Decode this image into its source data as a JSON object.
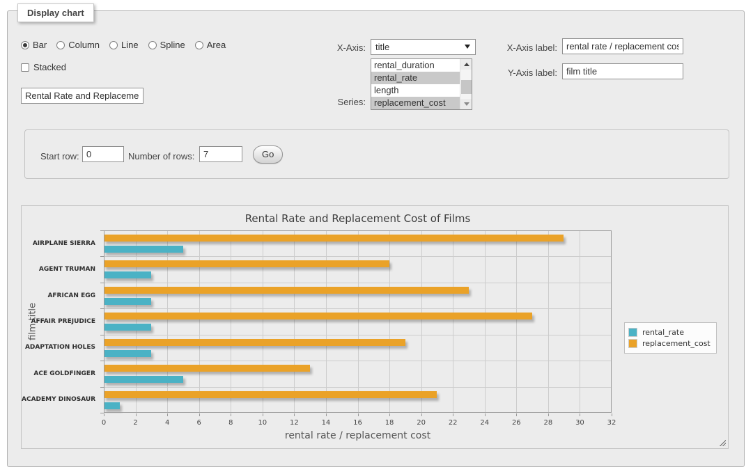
{
  "panel": {
    "legend": "Display chart"
  },
  "controls": {
    "chart_types": [
      {
        "label": "Bar",
        "selected": true
      },
      {
        "label": "Column",
        "selected": false
      },
      {
        "label": "Line",
        "selected": false
      },
      {
        "label": "Spline",
        "selected": false
      },
      {
        "label": "Area",
        "selected": false
      }
    ],
    "stacked": {
      "label": "Stacked",
      "checked": false
    },
    "chart_title_input": {
      "value": "Rental Rate and Replacement Cost of Films"
    },
    "x_axis": {
      "label": "X-Axis:",
      "selected_option": "title"
    },
    "series": {
      "label": "Series:",
      "options": [
        {
          "label": "rental_duration",
          "selected": false
        },
        {
          "label": "rental_rate",
          "selected": true
        },
        {
          "label": "length",
          "selected": false
        },
        {
          "label": "replacement_cost",
          "selected": true
        }
      ]
    },
    "x_axis_label": {
      "label": "X-Axis label:",
      "value": "rental rate / replacement cost"
    },
    "y_axis_label": {
      "label": "Y-Axis label:",
      "value": "film title"
    }
  },
  "row_selector": {
    "start_row_label": "Start row:",
    "start_row_value": "0",
    "number_of_rows_label": "Number of rows:",
    "number_of_rows_value": "7",
    "go_label": "Go"
  },
  "chart_data": {
    "type": "bar",
    "orientation": "horizontal",
    "title": "Rental Rate and Replacement Cost of Films",
    "xlabel": "rental rate / replacement cost",
    "ylabel": "film title",
    "categories": [
      "AIRPLANE SIERRA",
      "AGENT TRUMAN",
      "AFRICAN EGG",
      "AFFAIR PREJUDICE",
      "ADAPTATION HOLES",
      "ACE GOLDFINGER",
      "ACADEMY DINOSAUR"
    ],
    "series": [
      {
        "name": "rental_rate",
        "color": "#4bb2c5",
        "values": [
          4.99,
          2.99,
          2.99,
          2.99,
          2.99,
          4.99,
          0.99
        ]
      },
      {
        "name": "replacement_cost",
        "color": "#eaa228",
        "values": [
          28.99,
          17.99,
          22.99,
          26.99,
          18.99,
          12.99,
          20.99
        ]
      }
    ],
    "series_row_order": [
      "replacement_cost",
      "rental_rate"
    ],
    "xlim": [
      0,
      32
    ],
    "x_ticks": [
      0,
      2,
      4,
      6,
      8,
      10,
      12,
      14,
      16,
      18,
      20,
      22,
      24,
      26,
      28,
      30,
      32
    ],
    "grid": true,
    "legend_position": "right"
  }
}
